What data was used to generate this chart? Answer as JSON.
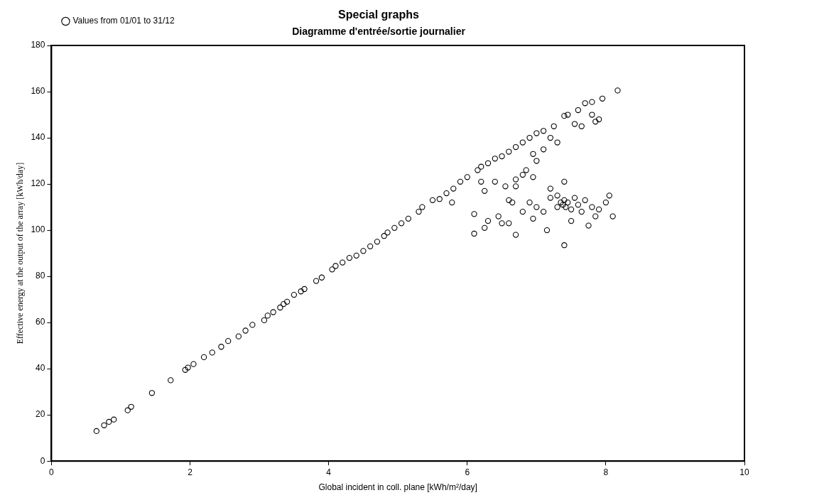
{
  "chart_data": {
    "type": "scatter",
    "title": "Special graphs",
    "subtitle": "Diagramme d'entrée/sortie journalier",
    "xlabel": "Global incident in coll. plane [kWh/m²/day]",
    "ylabel": "Effective energy at the output of the array [kWh/day]",
    "xlim": [
      0,
      10
    ],
    "xticks": [
      0,
      2,
      4,
      6,
      8,
      10
    ],
    "ylim": [
      0,
      180
    ],
    "yticks": [
      0,
      20,
      40,
      60,
      80,
      100,
      120,
      140,
      160,
      180
    ],
    "grid": false,
    "legend": "top left",
    "marker": "circle",
    "series": [
      {
        "name": "Values from 01/01 to 31/12",
        "color": "#000000",
        "x": [
          0.65,
          0.76,
          0.83,
          0.9,
          1.1,
          1.15,
          1.45,
          1.72,
          1.93,
          1.97,
          2.05,
          2.2,
          2.32,
          2.45,
          2.55,
          2.7,
          2.8,
          2.9,
          3.07,
          3.12,
          3.2,
          3.3,
          3.35,
          3.4,
          3.5,
          3.6,
          3.65,
          3.82,
          3.9,
          4.05,
          4.1,
          4.2,
          4.3,
          4.4,
          4.5,
          4.6,
          4.7,
          4.8,
          4.85,
          4.95,
          5.05,
          5.15,
          5.3,
          5.35,
          5.5,
          5.6,
          5.7,
          5.8,
          5.9,
          6.0,
          6.15,
          6.2,
          6.3,
          6.4,
          6.5,
          6.6,
          6.7,
          6.8,
          6.9,
          7.0,
          7.1,
          7.25,
          7.4,
          7.45,
          7.6,
          7.7,
          7.8,
          7.95,
          8.17,
          5.78,
          6.1,
          6.2,
          6.25,
          6.4,
          6.55,
          6.7,
          6.8,
          6.85,
          6.95,
          7.1,
          7.2,
          7.3,
          7.55,
          7.65,
          7.8,
          7.85,
          7.9,
          6.95,
          7.0,
          6.1,
          6.25,
          6.3,
          6.45,
          6.5,
          6.6,
          6.7,
          6.65,
          6.8,
          6.9,
          6.95,
          7.0,
          7.1,
          7.15,
          7.2,
          7.3,
          7.35,
          7.38,
          7.4,
          7.42,
          7.45,
          7.5,
          7.55,
          7.6,
          7.65,
          7.7,
          7.8,
          7.85,
          7.9,
          8.0,
          8.05,
          8.1,
          7.4,
          7.4,
          7.5,
          7.75,
          7.3,
          7.2,
          6.6,
          6.7
        ],
        "values": [
          13,
          15.5,
          17,
          18,
          22,
          23.5,
          29.5,
          35,
          39.5,
          40.5,
          42,
          45,
          47,
          49.5,
          52,
          54,
          56.5,
          59,
          61,
          63,
          64.5,
          66.5,
          68,
          69,
          72,
          73.5,
          74.5,
          78,
          79.5,
          83,
          84.5,
          86,
          88,
          89,
          91,
          93,
          95,
          97.5,
          99,
          101,
          103,
          105,
          108,
          110,
          113,
          113.5,
          116,
          118,
          121,
          123,
          126,
          127.5,
          129,
          131,
          132,
          134,
          136,
          138,
          140,
          142,
          143,
          145,
          149.5,
          150,
          152,
          155,
          155.5,
          157,
          160.5,
          112,
          107,
          121,
          117,
          121,
          119,
          122,
          124,
          126,
          123,
          135,
          140,
          138,
          146,
          145,
          150,
          147,
          148,
          133,
          130,
          98.5,
          101,
          104,
          106,
          103,
          103,
          98,
          112,
          108,
          112,
          105,
          110,
          108,
          100,
          114,
          110,
          112,
          111,
          113,
          110,
          112,
          109,
          114,
          111,
          108,
          113,
          110,
          106,
          109,
          112,
          115,
          106,
          121,
          93.5,
          104,
          102,
          115,
          118,
          113,
          119
        ]
      }
    ]
  }
}
